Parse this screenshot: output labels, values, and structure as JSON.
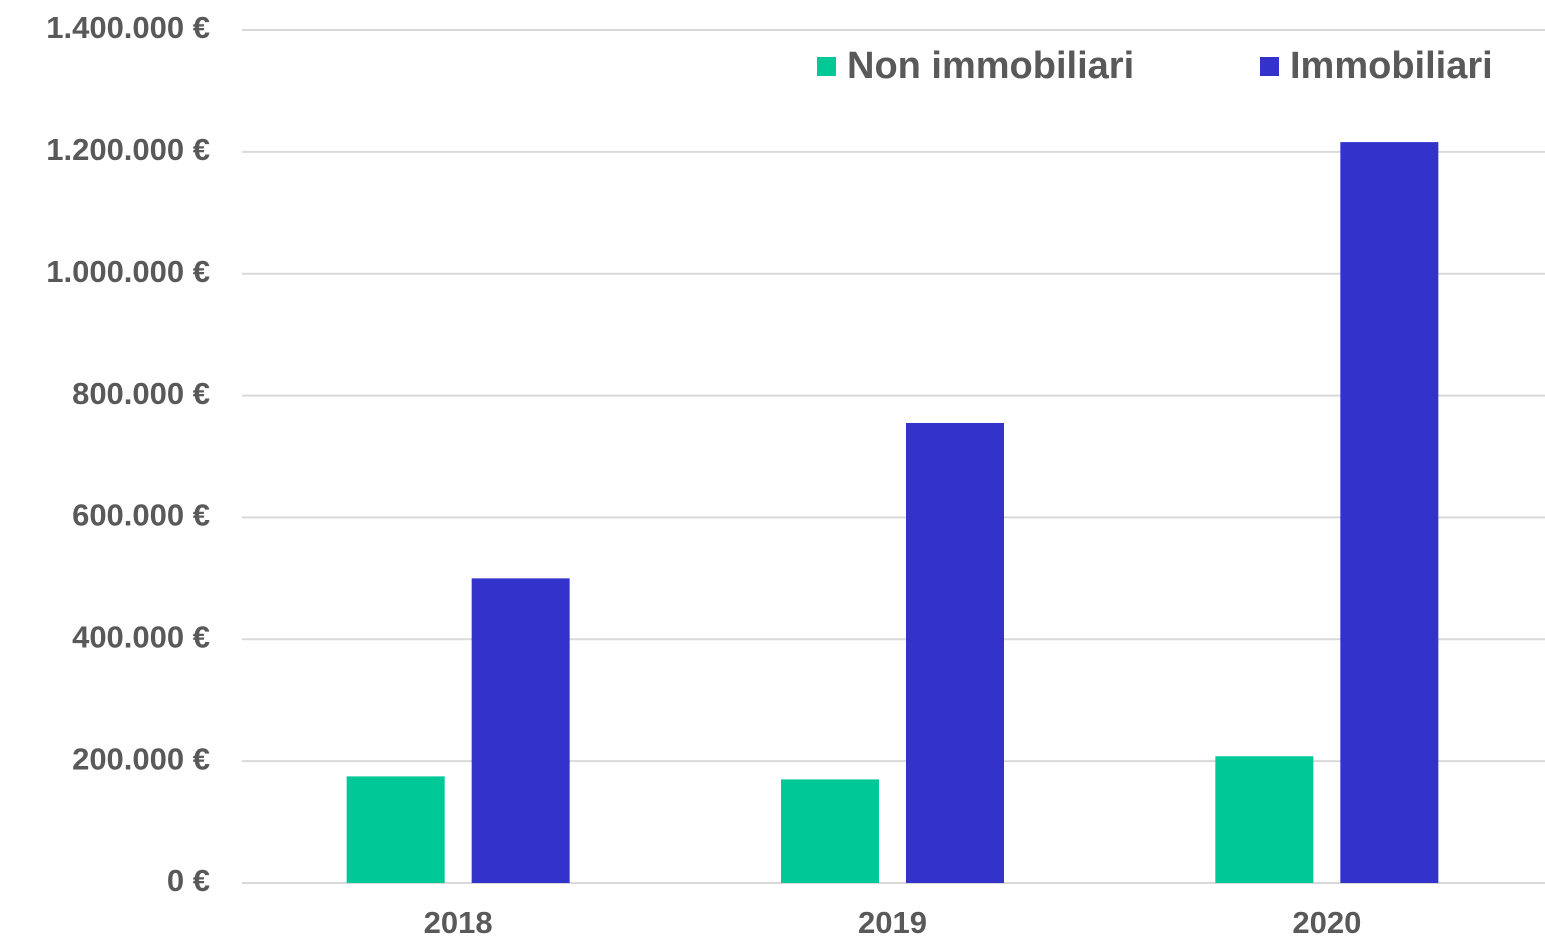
{
  "chart_data": {
    "type": "bar",
    "categories": [
      "2018",
      "2019",
      "2020"
    ],
    "series": [
      {
        "name": "Non immobiliari",
        "color": "#00c896",
        "values": [
          175000,
          170000,
          208000
        ]
      },
      {
        "name": "Immobiliari",
        "color": "#3333cc",
        "values": [
          500000,
          755000,
          1216000
        ]
      }
    ],
    "ylim": [
      0,
      1400000
    ],
    "yticks": [
      {
        "value": 0,
        "label": "0 €"
      },
      {
        "value": 200000,
        "label": "200.000 €"
      },
      {
        "value": 400000,
        "label": "400.000 €"
      },
      {
        "value": 600000,
        "label": "600.000 €"
      },
      {
        "value": 800000,
        "label": "800.000 €"
      },
      {
        "value": 1000000,
        "label": "1.000.000 €"
      },
      {
        "value": 1200000,
        "label": "1.200.000 €"
      },
      {
        "value": 1400000,
        "label": "1.400.000 €"
      }
    ],
    "grid": true,
    "legend": "top-right"
  }
}
